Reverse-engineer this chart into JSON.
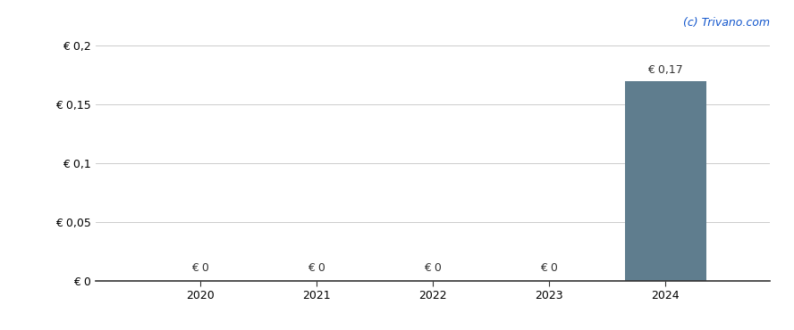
{
  "years": [
    2020,
    2021,
    2022,
    2023,
    2024
  ],
  "values": [
    0,
    0,
    0,
    0,
    0.17
  ],
  "bar_color": "#5f7d8e",
  "bar_width": 0.7,
  "ylim": [
    0,
    0.205
  ],
  "yticks": [
    0,
    0.05,
    0.1,
    0.15,
    0.2
  ],
  "ytick_labels": [
    "€ 0",
    "€ 0,05",
    "€ 0,1",
    "€ 0,15",
    "€ 0,2"
  ],
  "value_labels": [
    "€ 0",
    "€ 0",
    "€ 0",
    "€ 0",
    "€ 0,17"
  ],
  "watermark": "(c) Trivano.com",
  "background_color": "#ffffff",
  "grid_color": "#cccccc",
  "annotation_color": "#333333",
  "xlim": [
    2019.1,
    2024.9
  ]
}
